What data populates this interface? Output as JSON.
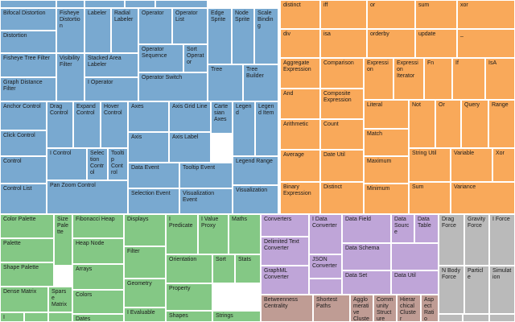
{
  "chart_data": {
    "type": "treemap",
    "title": "",
    "colors": {
      "blue": "#79a9d0",
      "orange": "#f9a95a",
      "green": "#84c885",
      "purple": "#bfa5d8",
      "brown": "#bf9c94",
      "gray": "#bababa"
    },
    "groups": [
      {
        "name": "blue",
        "cells": [
          {
            "label": "Bifocal Distortion",
            "color": "blue"
          },
          {
            "label": "Distortion",
            "color": "blue"
          },
          {
            "label": "Fisheye Distortion",
            "color": "blue"
          },
          {
            "label": "Labeler",
            "color": "blue"
          },
          {
            "label": "Radial Labeler",
            "color": "blue"
          },
          {
            "label": "Operator",
            "color": "blue"
          },
          {
            "label": "Operator List",
            "color": "blue"
          },
          {
            "label": "Edge Sprite",
            "color": "blue"
          },
          {
            "label": "Node Sprite",
            "color": "blue"
          },
          {
            "label": "Scale Binding",
            "color": "blue"
          },
          {
            "label": "Fisheye Tree Filter",
            "color": "blue"
          },
          {
            "label": "Visibility Filter",
            "color": "blue"
          },
          {
            "label": "Stacked Area Labeler",
            "color": "blue"
          },
          {
            "label": "Operator Sequence",
            "color": "blue"
          },
          {
            "label": "Sort Operator",
            "color": "blue"
          },
          {
            "label": "Tree",
            "color": "blue"
          },
          {
            "label": "Tree Builder",
            "color": "blue"
          },
          {
            "label": "Graph Distance Filter",
            "color": "blue"
          },
          {
            "label": "I Operator",
            "color": "blue"
          },
          {
            "label": "Operator Switch",
            "color": "blue"
          },
          {
            "label": "Anchor Control",
            "color": "blue"
          },
          {
            "label": "Drag Control",
            "color": "blue"
          },
          {
            "label": "Expand Control",
            "color": "blue"
          },
          {
            "label": "Hover Control",
            "color": "blue"
          },
          {
            "label": "Axes",
            "color": "blue"
          },
          {
            "label": "Axis Grid Line",
            "color": "blue"
          },
          {
            "label": "Cartesian Axes",
            "color": "blue"
          },
          {
            "label": "Legend",
            "color": "blue"
          },
          {
            "label": "Legend Item",
            "color": "blue"
          },
          {
            "label": "Click Control",
            "color": "blue"
          },
          {
            "label": "Axis",
            "color": "blue"
          },
          {
            "label": "Axis Label",
            "color": "blue"
          },
          {
            "label": "Control",
            "color": "blue"
          },
          {
            "label": "I Control",
            "color": "blue"
          },
          {
            "label": "Selection Control",
            "color": "blue"
          },
          {
            "label": "Tooltip Control",
            "color": "blue"
          },
          {
            "label": "Legend Range",
            "color": "blue"
          },
          {
            "label": "Data Event",
            "color": "blue"
          },
          {
            "label": "Tooltip Event",
            "color": "blue"
          },
          {
            "label": "Control List",
            "color": "blue"
          },
          {
            "label": "Pan Zoom Control",
            "color": "blue"
          },
          {
            "label": "Selection Event",
            "color": "blue"
          },
          {
            "label": "Visualization Event",
            "color": "blue"
          },
          {
            "label": "Visualization",
            "color": "blue"
          }
        ]
      },
      {
        "name": "orange",
        "cells": [
          {
            "label": "distinct",
            "color": "orange"
          },
          {
            "label": "iff",
            "color": "orange"
          },
          {
            "label": "or",
            "color": "orange"
          },
          {
            "label": "sum",
            "color": "orange"
          },
          {
            "label": "xor",
            "color": "orange"
          },
          {
            "label": "div",
            "color": "orange"
          },
          {
            "label": "isa",
            "color": "orange"
          },
          {
            "label": "orderby",
            "color": "orange"
          },
          {
            "label": "update",
            "color": "orange"
          },
          {
            "label": "_",
            "color": "orange"
          },
          {
            "label": "Aggregate Expression",
            "color": "orange"
          },
          {
            "label": "Comparison",
            "color": "orange"
          },
          {
            "label": "Expression",
            "color": "orange"
          },
          {
            "label": "Expression Iterator",
            "color": "orange"
          },
          {
            "label": "Fn",
            "color": "orange"
          },
          {
            "label": "If",
            "color": "orange"
          },
          {
            "label": "IsA",
            "color": "orange"
          },
          {
            "label": "And",
            "color": "orange"
          },
          {
            "label": "Composite Expression",
            "color": "orange"
          },
          {
            "label": "Literal",
            "color": "orange"
          },
          {
            "label": "Not",
            "color": "orange"
          },
          {
            "label": "Or",
            "color": "orange"
          },
          {
            "label": "Query",
            "color": "orange"
          },
          {
            "label": "Range",
            "color": "orange"
          },
          {
            "label": "Arithmetic",
            "color": "orange"
          },
          {
            "label": "Count",
            "color": "orange"
          },
          {
            "label": "Match",
            "color": "orange"
          },
          {
            "label": "Average",
            "color": "orange"
          },
          {
            "label": "Date Util",
            "color": "orange"
          },
          {
            "label": "Maximum",
            "color": "orange"
          },
          {
            "label": "String Util",
            "color": "orange"
          },
          {
            "label": "Variable",
            "color": "orange"
          },
          {
            "label": "Xor",
            "color": "orange"
          },
          {
            "label": "Binary Expression",
            "color": "orange"
          },
          {
            "label": "Distinct",
            "color": "orange"
          },
          {
            "label": "Minimum",
            "color": "orange"
          },
          {
            "label": "Sum",
            "color": "orange"
          },
          {
            "label": "Variance",
            "color": "orange"
          }
        ]
      },
      {
        "name": "green",
        "cells": [
          {
            "label": "Color Palette",
            "color": "green"
          },
          {
            "label": "Size Palette",
            "color": "green"
          },
          {
            "label": "Fibonacci Heap",
            "color": "green"
          },
          {
            "label": "Displays",
            "color": "green"
          },
          {
            "label": "I Predicate",
            "color": "green"
          },
          {
            "label": "I Value Proxy",
            "color": "green"
          },
          {
            "label": "Maths",
            "color": "green"
          },
          {
            "label": "Palette",
            "color": "green"
          },
          {
            "label": "Heap Node",
            "color": "green"
          },
          {
            "label": "Filter",
            "color": "green"
          },
          {
            "label": "Shape Palette",
            "color": "green"
          },
          {
            "label": "Arrays",
            "color": "green"
          },
          {
            "label": "Orientation",
            "color": "green"
          },
          {
            "label": "Sort",
            "color": "green"
          },
          {
            "label": "Stats",
            "color": "green"
          },
          {
            "label": "Geometry",
            "color": "green"
          },
          {
            "label": "Dense Matrix",
            "color": "green"
          },
          {
            "label": "Sparse Matrix",
            "color": "green"
          },
          {
            "label": "Colors",
            "color": "green"
          },
          {
            "label": "Property",
            "color": "green"
          },
          {
            "label": "I Evaluable",
            "color": "green"
          },
          {
            "label": "Shapes",
            "color": "green"
          },
          {
            "label": "Strings",
            "color": "green"
          },
          {
            "label": "I Matrix",
            "color": "green"
          },
          {
            "label": "Dates",
            "color": "green"
          }
        ]
      },
      {
        "name": "purple",
        "cells": [
          {
            "label": "Converters",
            "color": "purple"
          },
          {
            "label": "I Data Converter",
            "color": "purple"
          },
          {
            "label": "Data Field",
            "color": "purple"
          },
          {
            "label": "Data Source",
            "color": "purple"
          },
          {
            "label": "Data Table",
            "color": "purple"
          },
          {
            "label": "Delimited Text Converter",
            "color": "purple"
          },
          {
            "label": "Data Schema",
            "color": "purple"
          },
          {
            "label": "JSON Converter",
            "color": "purple"
          },
          {
            "label": "GraphML Converter",
            "color": "purple"
          },
          {
            "label": "Data Set",
            "color": "purple"
          },
          {
            "label": "Data Util",
            "color": "purple"
          }
        ]
      },
      {
        "name": "brown",
        "cells": [
          {
            "label": "Betweenness Centrality",
            "color": "brown"
          },
          {
            "label": "Shortest Paths",
            "color": "brown"
          },
          {
            "label": "Agglomerative Cluster",
            "color": "brown"
          },
          {
            "label": "Community Structure",
            "color": "brown"
          },
          {
            "label": "Hierarchical Cluster",
            "color": "brown"
          },
          {
            "label": "Aspect Ratio Banker",
            "color": "brown"
          }
        ]
      },
      {
        "name": "gray",
        "cells": [
          {
            "label": "Drag Force",
            "color": "gray"
          },
          {
            "label": "Gravity Force",
            "color": "gray"
          },
          {
            "label": "I Force",
            "color": "gray"
          },
          {
            "label": "N Body Force",
            "color": "gray"
          },
          {
            "label": "Particle",
            "color": "gray"
          },
          {
            "label": "Simulation",
            "color": "gray"
          }
        ]
      }
    ]
  }
}
